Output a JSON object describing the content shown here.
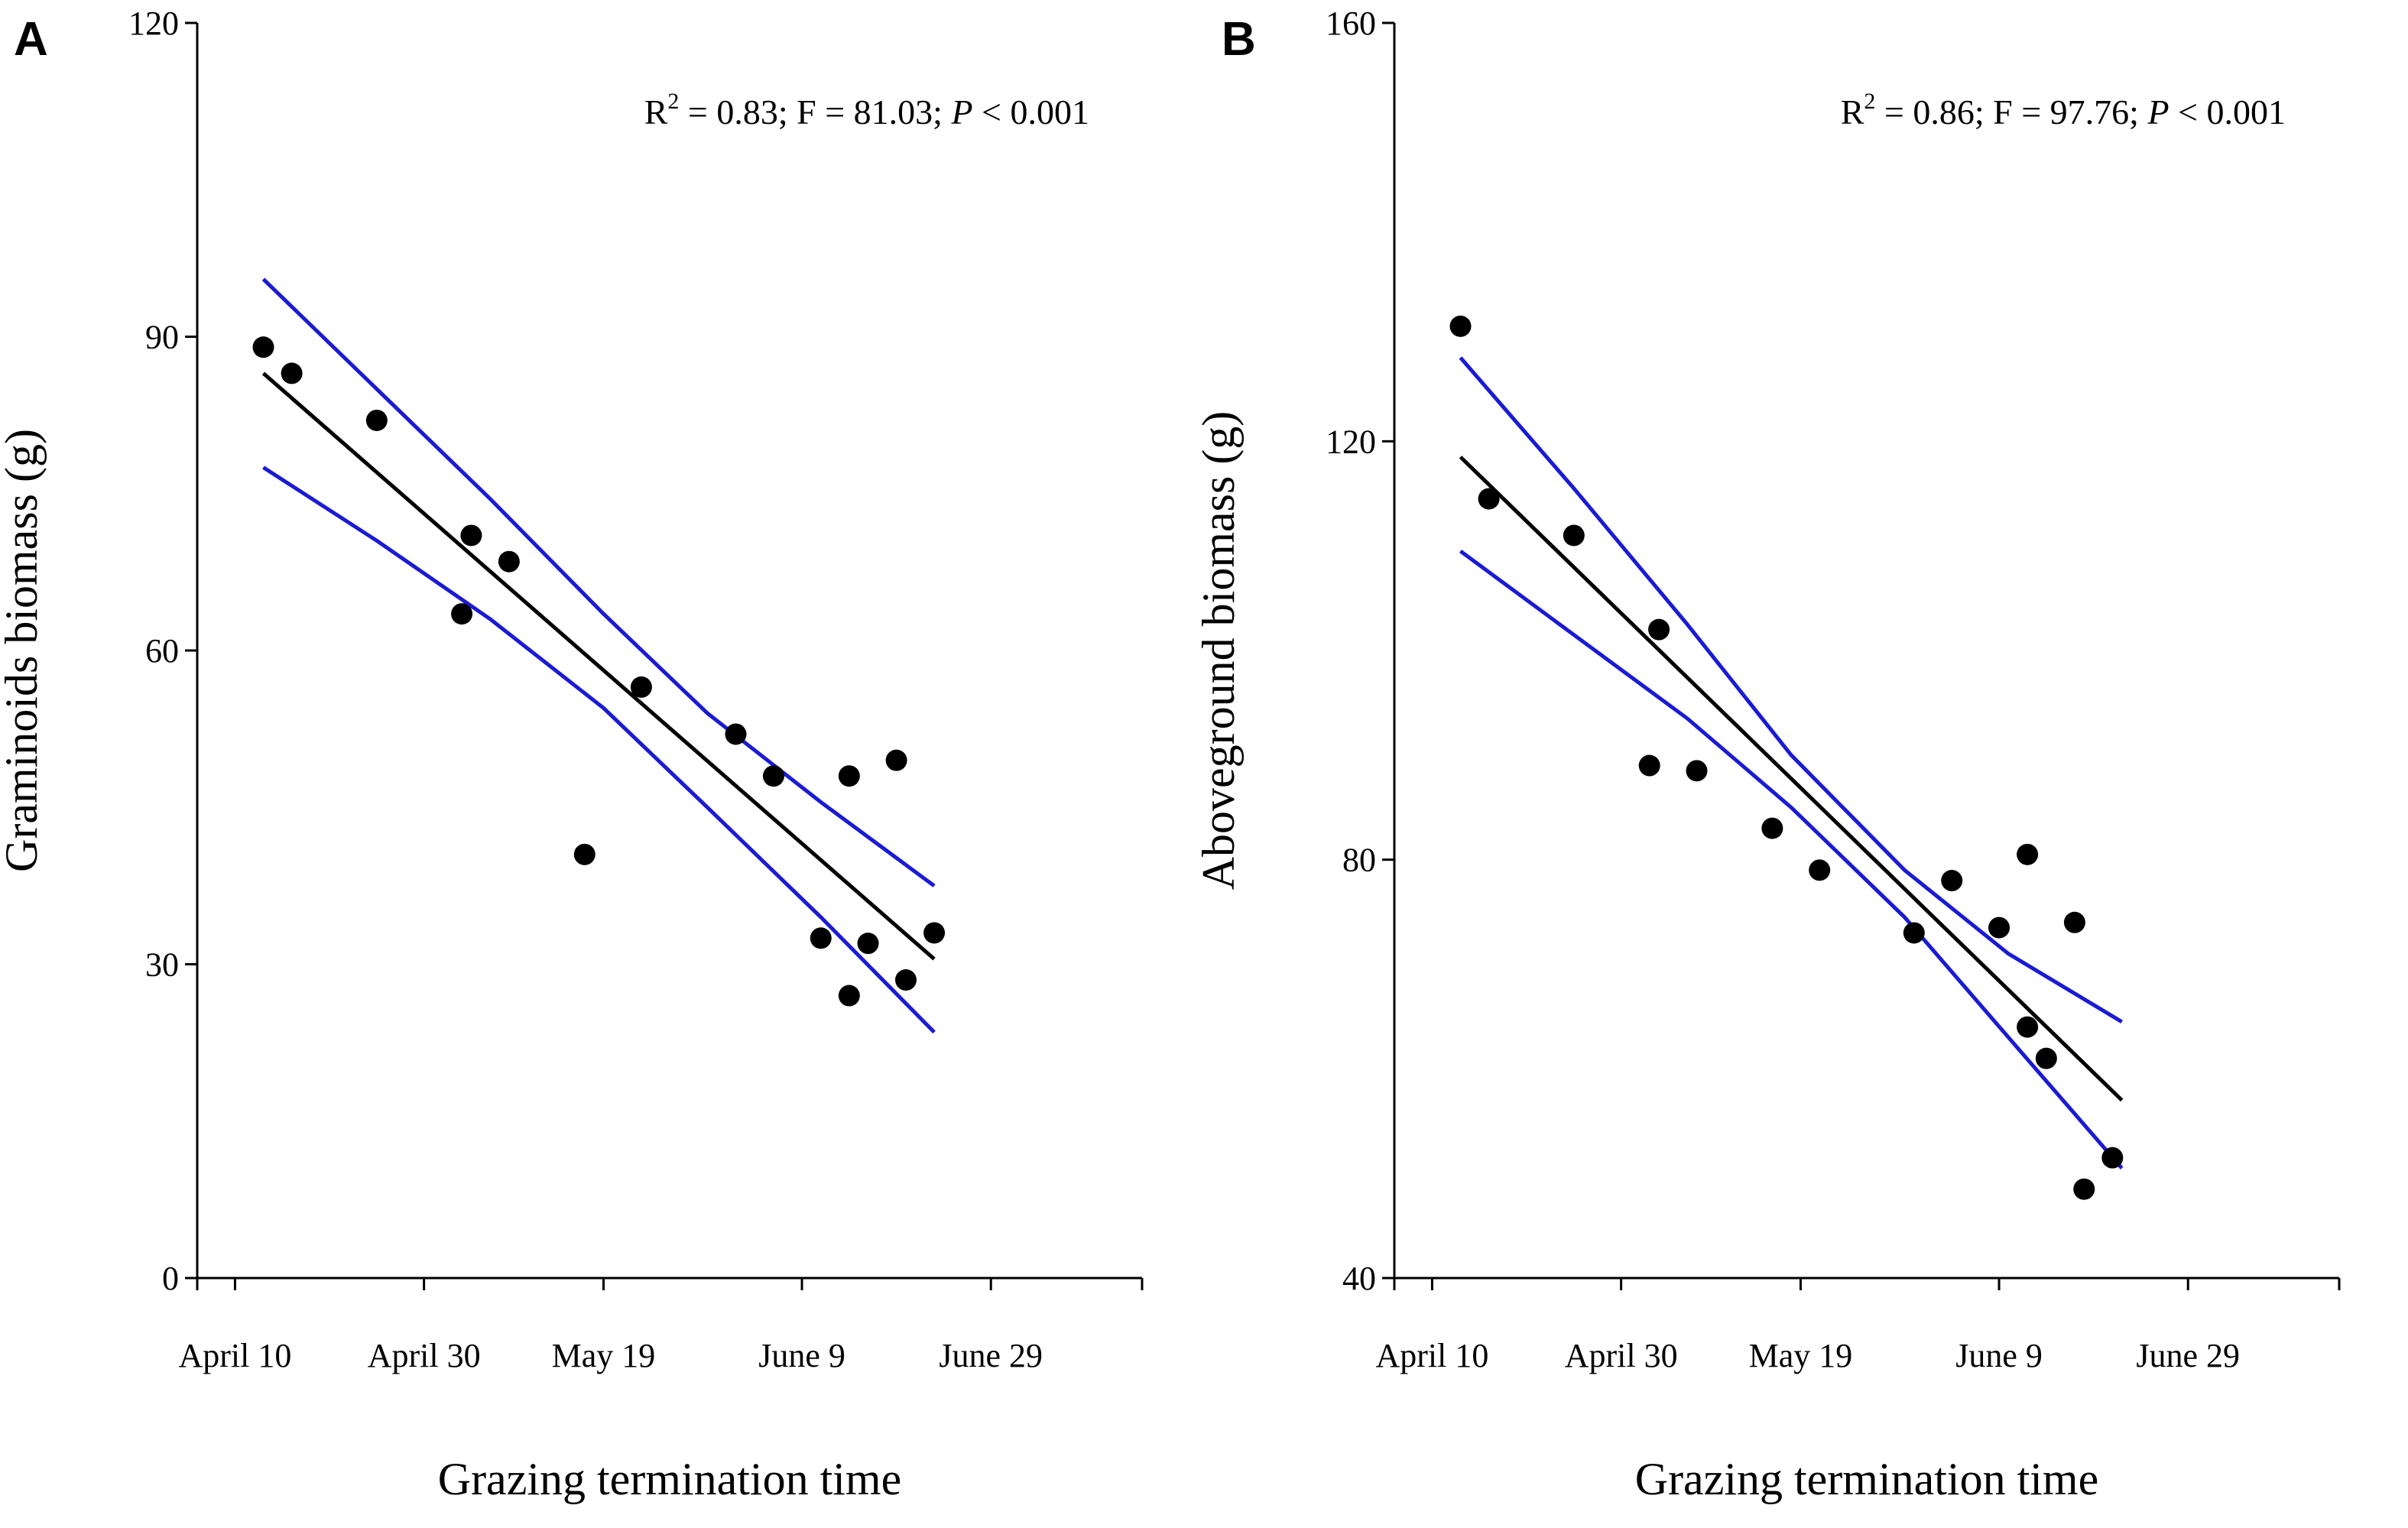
{
  "chart_data": [
    {
      "type": "scatter",
      "panel_label": "A",
      "xlabel": "Grazing termination time",
      "ylabel": "Graminoids biomass (g)",
      "x_units": "days after April 10",
      "xlim": [
        -4,
        96
      ],
      "x_tick_values": [
        0,
        20,
        39,
        60,
        80
      ],
      "x_tick_labels": [
        "April 10",
        "April 30",
        "May 19",
        "June 9",
        "June 29"
      ],
      "ylim": [
        0,
        120
      ],
      "y_ticks": [
        0,
        30,
        60,
        90,
        120
      ],
      "grid": false,
      "annotation": {
        "r2_prefix": "R",
        "r2_sup": "2",
        "r2_value": " = 0.83; F = 81.03; ",
        "p_symbol": "P",
        "p_value": " < 0.001"
      },
      "points": {
        "x": [
          3,
          6,
          15,
          24,
          25,
          29,
          37,
          43,
          53,
          57,
          62,
          65,
          65,
          67,
          70,
          71,
          74
        ],
        "y": [
          89,
          86.5,
          82,
          63.5,
          71,
          68.5,
          40.5,
          56.5,
          52,
          48,
          32.5,
          27,
          48,
          32,
          49.5,
          28.5,
          33
        ]
      },
      "fit_line": {
        "x": [
          3,
          74
        ],
        "y": [
          86.5,
          30.5
        ],
        "color": "#000000"
      },
      "confidence_band": {
        "color": "#1a1ad6",
        "x": [
          3,
          15,
          27,
          39,
          50,
          62,
          74
        ],
        "upper": [
          95.5,
          85,
          74.5,
          63.5,
          54,
          45.5,
          37.5
        ],
        "lower": [
          77.5,
          70.5,
          63,
          54.5,
          45,
          34.5,
          23.5
        ]
      }
    },
    {
      "type": "scatter",
      "panel_label": "B",
      "xlabel": "Grazing termination time",
      "ylabel": "Aboveground biomass (g)",
      "x_units": "days after April 10",
      "xlim": [
        -4,
        96
      ],
      "x_tick_values": [
        0,
        20,
        39,
        60,
        80
      ],
      "x_tick_labels": [
        "April 10",
        "April 30",
        "May 19",
        "June 9",
        "June 29"
      ],
      "ylim": [
        40,
        160
      ],
      "y_ticks": [
        40,
        80,
        120,
        160
      ],
      "grid": false,
      "annotation": {
        "r2_prefix": "R",
        "r2_sup": "2",
        "r2_value": " = 0.86; F = 97.76; ",
        "p_symbol": "P",
        "p_value": " < 0.001"
      },
      "points": {
        "x": [
          3,
          6,
          15,
          23,
          24,
          28,
          36,
          41,
          51,
          55,
          60,
          63,
          63,
          65,
          68,
          69,
          72
        ],
        "y": [
          131,
          114.5,
          111,
          89,
          102,
          88.5,
          83,
          79,
          73,
          78,
          73.5,
          64,
          80.5,
          61,
          74,
          48.5,
          51.5
        ]
      },
      "fit_line": {
        "x": [
          3,
          73
        ],
        "y": [
          118.5,
          57
        ],
        "color": "#000000"
      },
      "confidence_band": {
        "color": "#1a1ad6",
        "x": [
          3,
          15,
          27,
          38,
          50,
          61,
          73
        ],
        "upper": [
          128,
          115.5,
          102.5,
          90,
          79,
          71,
          64.5
        ],
        "lower": [
          109.5,
          101.5,
          93.5,
          85,
          74.5,
          63,
          50.5
        ]
      }
    }
  ]
}
